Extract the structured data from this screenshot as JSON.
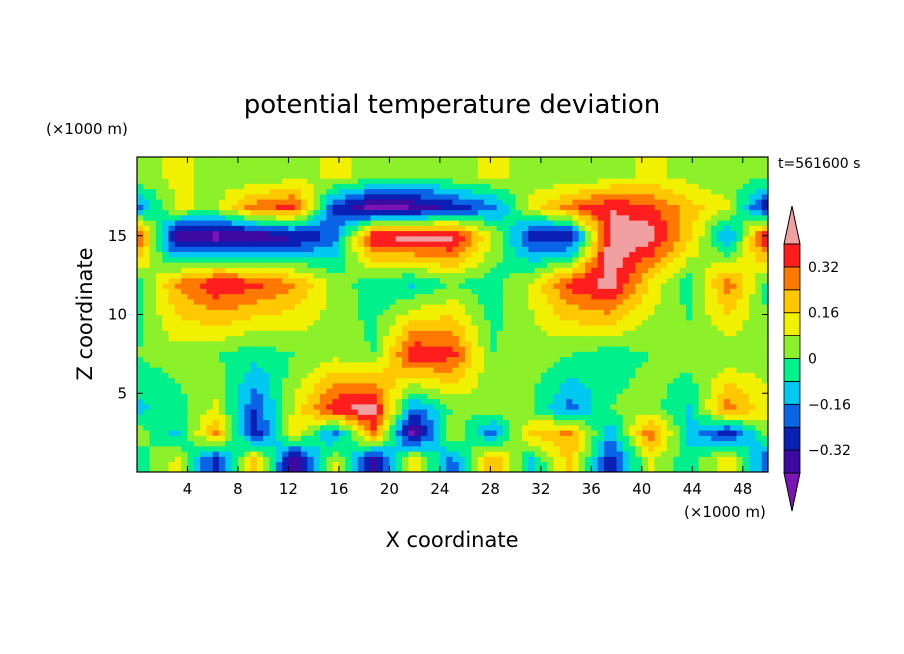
{
  "chart_data": {
    "type": "heatmap",
    "title": "potential temperature deviation",
    "time_label": "t=561600 s",
    "xlabel": "X coordinate",
    "ylabel": "Z coordinate",
    "x_unit": "(×1000 m)",
    "y_unit": "(×1000 m)",
    "xlim": [
      0,
      50
    ],
    "ylim": [
      0,
      20
    ],
    "x_ticks": [
      4,
      8,
      12,
      16,
      20,
      24,
      28,
      32,
      36,
      40,
      44,
      48
    ],
    "y_ticks": [
      5,
      10,
      15
    ],
    "colorbar": {
      "levels": [
        -0.48,
        -0.4,
        -0.32,
        -0.24,
        -0.16,
        -0.08,
        0,
        0.08,
        0.16,
        0.24,
        0.32,
        0.4
      ],
      "labels": [
        "0.32",
        "0.16",
        "0",
        "−0.16",
        "−0.32"
      ],
      "label_values": [
        0.32,
        0.16,
        0,
        -0.16,
        -0.32
      ],
      "colors": [
        "#7a14b4",
        "#3c0aa0",
        "#0a1fb4",
        "#0a64e6",
        "#00c8f0",
        "#00f08c",
        "#8cf02a",
        "#f0f000",
        "#ffc800",
        "#ff7800",
        "#ff1e1e",
        "#f0a0a0"
      ],
      "extend": "both"
    },
    "layers": [
      {
        "z": 0.8,
        "values": [
          -0.05,
          0.1,
          -0.3,
          0.2,
          -0.4,
          0.1,
          -0.35,
          0.15,
          -0.2,
          0.25,
          -0.1,
          0.2,
          -0.3,
          0.1,
          -0.05,
          0.15,
          -0.25
        ]
      },
      {
        "z": 2.5,
        "values": [
          0.05,
          -0.1,
          0.25,
          -0.3,
          0.15,
          -0.2,
          0.3,
          -0.45,
          0.1,
          -0.2,
          0.2,
          0.25,
          -0.15,
          0.3,
          -0.1,
          -0.3,
          0.05
        ]
      },
      {
        "z": 4.0,
        "values": [
          -0.1,
          -0.05,
          0.1,
          -0.25,
          0.1,
          0.4,
          0.45,
          -0.2,
          0.0,
          0.05,
          0.0,
          -0.2,
          0.0,
          0.05,
          -0.1,
          0.3,
          0.1
        ]
      },
      {
        "z": 7.5,
        "values": [
          0.0,
          0.05,
          0.0,
          -0.05,
          0.0,
          0.05,
          0.0,
          0.4,
          0.35,
          0.0,
          0.05,
          0.0,
          -0.05,
          0.0,
          0.05,
          0.0,
          0.05
        ]
      },
      {
        "z": 12.0,
        "values": [
          -0.05,
          0.25,
          0.4,
          0.35,
          0.25,
          0.05,
          -0.05,
          -0.1,
          0.0,
          -0.05,
          0.1,
          0.35,
          0.45,
          0.15,
          -0.05,
          0.3,
          -0.05
        ]
      },
      {
        "z": 15.0,
        "values": [
          0.4,
          -0.4,
          -0.45,
          -0.4,
          -0.35,
          -0.2,
          0.4,
          0.45,
          0.45,
          0.1,
          -0.3,
          -0.35,
          0.45,
          0.45,
          0.2,
          -0.2,
          0.45
        ]
      },
      {
        "z": 16.8,
        "values": [
          -0.2,
          0.1,
          0.05,
          0.3,
          0.35,
          -0.25,
          -0.45,
          -0.4,
          -0.3,
          -0.2,
          0.1,
          0.3,
          0.4,
          0.35,
          0.2,
          0.1,
          -0.35
        ]
      },
      {
        "z": 18.8,
        "values": [
          0.05,
          0.1,
          0.05,
          0.0,
          0.05,
          0.1,
          0.05,
          0.0,
          0.05,
          0.1,
          0.05,
          0.0,
          0.05,
          0.1,
          0.05,
          0.0,
          0.05
        ]
      }
    ]
  }
}
